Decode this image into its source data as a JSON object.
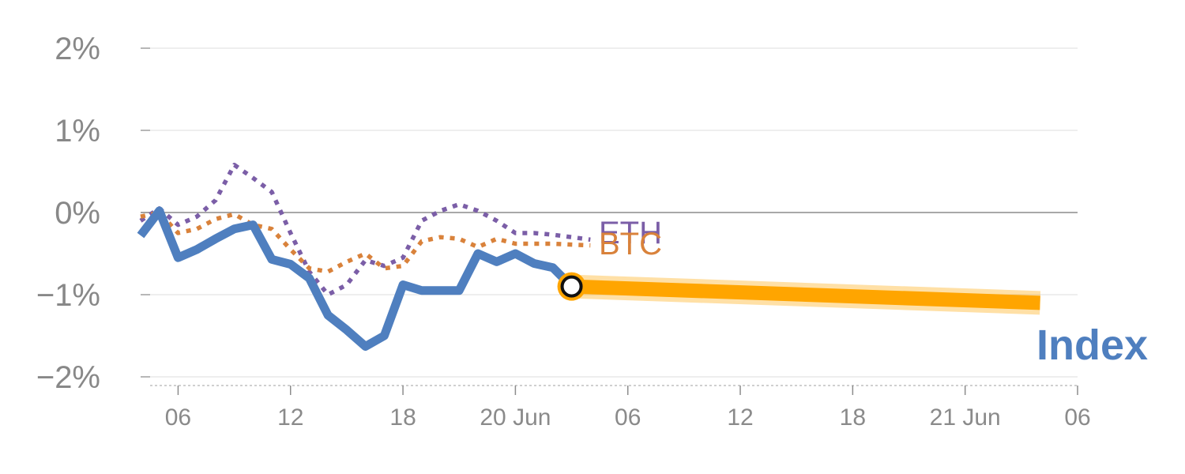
{
  "chart_data": {
    "type": "line",
    "title": "",
    "xlabel": "",
    "ylabel": "",
    "ylim": [
      -2,
      2
    ],
    "xlim": [
      -2,
      46
    ],
    "y_ticks": [
      {
        "value": 2,
        "label": "2%"
      },
      {
        "value": 1,
        "label": "1%"
      },
      {
        "value": 0,
        "label": "0%"
      },
      {
        "value": -1,
        "label": "−1%"
      },
      {
        "value": -2,
        "label": "−2%"
      }
    ],
    "x_ticks": [
      {
        "value": 0,
        "label": "06"
      },
      {
        "value": 6,
        "label": "12"
      },
      {
        "value": 12,
        "label": "18"
      },
      {
        "value": 18,
        "label": "20 Jun"
      },
      {
        "value": 24,
        "label": "06"
      },
      {
        "value": 30,
        "label": "12"
      },
      {
        "value": 36,
        "label": "18"
      },
      {
        "value": 42,
        "label": "21 Jun"
      },
      {
        "value": 48,
        "label": "06"
      }
    ],
    "grid": true,
    "series": [
      {
        "name": "ETH",
        "style": "dotted",
        "color": "#7b5ea7",
        "x": [
          -2,
          -1,
          0,
          1,
          2,
          3,
          4,
          5,
          6,
          7,
          8,
          9,
          10,
          11,
          12,
          13,
          14,
          15,
          16,
          17,
          18,
          19,
          20,
          21,
          22
        ],
        "values": [
          -0.1,
          0.05,
          -0.15,
          -0.05,
          0.15,
          0.58,
          0.42,
          0.25,
          -0.25,
          -0.72,
          -1.0,
          -0.88,
          -0.58,
          -0.65,
          -0.55,
          -0.1,
          0.02,
          0.1,
          0.02,
          -0.1,
          -0.25,
          -0.25,
          -0.27,
          -0.3,
          -0.33
        ]
      },
      {
        "name": "BTC",
        "style": "dotted",
        "color": "#d9823b",
        "x": [
          -2,
          -1,
          0,
          1,
          2,
          3,
          4,
          5,
          6,
          7,
          8,
          9,
          10,
          11,
          12,
          13,
          14,
          15,
          16,
          17,
          18,
          19,
          20,
          21,
          22
        ],
        "values": [
          -0.05,
          0.0,
          -0.25,
          -0.2,
          -0.08,
          -0.02,
          -0.15,
          -0.2,
          -0.45,
          -0.68,
          -0.72,
          -0.6,
          -0.5,
          -0.68,
          -0.65,
          -0.35,
          -0.3,
          -0.32,
          -0.42,
          -0.32,
          -0.38,
          -0.38,
          -0.38,
          -0.39,
          -0.4
        ]
      },
      {
        "name": "Index",
        "style": "solid",
        "color": "#4f7fbf",
        "x": [
          -2,
          -1,
          0,
          1,
          2,
          3,
          4,
          5,
          6,
          7,
          8,
          9,
          10,
          11,
          12,
          13,
          14,
          15,
          16,
          17,
          18,
          19,
          20,
          21
        ],
        "values": [
          -0.28,
          0.02,
          -0.55,
          -0.45,
          -0.32,
          -0.2,
          -0.15,
          -0.57,
          -0.63,
          -0.8,
          -1.25,
          -1.43,
          -1.63,
          -1.5,
          -0.88,
          -0.95,
          -0.95,
          -0.95,
          -0.5,
          -0.6,
          -0.5,
          -0.62,
          -0.67,
          -0.9
        ]
      }
    ],
    "forecast": {
      "color": "#ffa500",
      "x": [
        21,
        46
      ],
      "values": [
        -0.9,
        -1.1
      ]
    },
    "marker": {
      "x": 21,
      "value": -0.9
    },
    "labels": {
      "eth": "ETH",
      "btc": "BTC",
      "index": "Index"
    }
  }
}
